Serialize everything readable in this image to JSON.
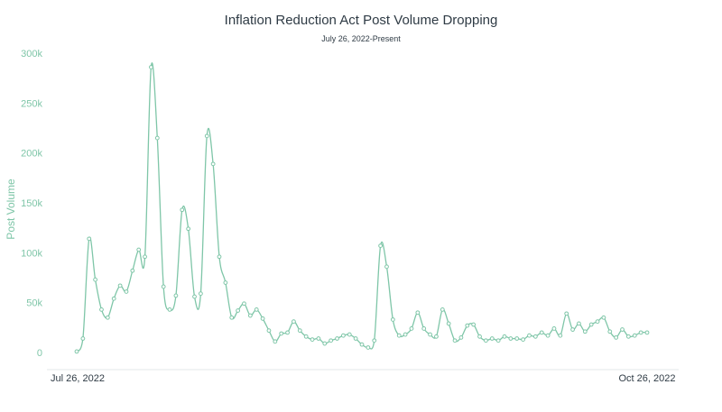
{
  "chart_data": {
    "type": "line",
    "title": "Inflation Reduction Act Post Volume Dropping",
    "subtitle": "July 26, 2022-Present",
    "ylabel": "Post Volume",
    "ylim": [
      0,
      300000
    ],
    "y_ticks": [
      "0",
      "50k",
      "100k",
      "150k",
      "200k",
      "250k",
      "300k"
    ],
    "x_ticks": [
      "Jul 26, 2022",
      "Oct 26, 2022"
    ],
    "line_color": "#7fc6a8",
    "grid": false,
    "series": [
      {
        "values": [
          1000,
          14000,
          114000,
          73000,
          43000,
          35000,
          54000,
          67000,
          61000,
          82000,
          103000,
          96000,
          286000,
          215000,
          66000,
          43000,
          57000,
          143000,
          124000,
          56000,
          59000,
          217000,
          189000,
          96000,
          70000,
          35000,
          42000,
          49000,
          37000,
          43000,
          34000,
          22000,
          11000,
          19000,
          20000,
          31000,
          22000,
          16000,
          13000,
          14000,
          9000,
          12000,
          14000,
          17000,
          18000,
          14000,
          8000,
          5000,
          12000,
          107000,
          86000,
          33000,
          17000,
          18000,
          24000,
          40000,
          24000,
          18000,
          16000,
          43000,
          29000,
          12000,
          15000,
          27000,
          28000,
          16000,
          12000,
          14000,
          12000,
          16000,
          14000,
          14000,
          13000,
          17000,
          16000,
          20000,
          17000,
          24000,
          17000,
          39000,
          23000,
          29000,
          21000,
          28000,
          31000,
          35000,
          21000,
          15000,
          23000,
          16000,
          17000,
          20000,
          20000
        ]
      }
    ]
  }
}
